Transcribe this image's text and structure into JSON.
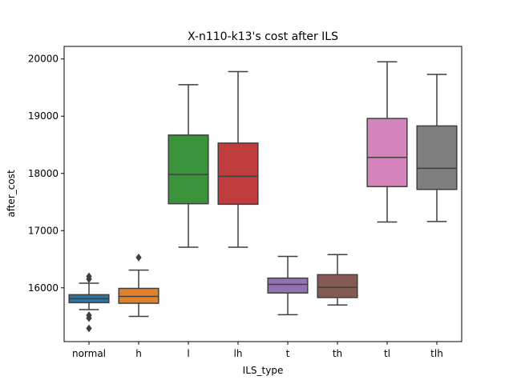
{
  "chart_data": {
    "type": "box",
    "title": "X-n110-k13's cost after ILS",
    "xlabel": "ILS_type",
    "ylabel": "after_cost",
    "ylim": [
      15060,
      20220
    ],
    "yticks": [
      16000,
      17000,
      18000,
      19000,
      20000
    ],
    "categories": [
      "normal",
      "h",
      "l",
      "lh",
      "t",
      "th",
      "tl",
      "tlh"
    ],
    "boxes": [
      {
        "category": "normal",
        "color": "#3274a1",
        "whisker_low": 15620,
        "q1": 15740,
        "median": 15810,
        "q3": 15880,
        "whisker_high": 16080,
        "outliers": [
          16150,
          16200,
          15520,
          15470,
          15290
        ]
      },
      {
        "category": "h",
        "color": "#e1812c",
        "whisker_low": 15500,
        "q1": 15730,
        "median": 15850,
        "q3": 15990,
        "whisker_high": 16310,
        "outliers": [
          16530
        ]
      },
      {
        "category": "l",
        "color": "#3a923a",
        "whisker_low": 16710,
        "q1": 17470,
        "median": 17980,
        "q3": 18670,
        "whisker_high": 19550,
        "outliers": []
      },
      {
        "category": "lh",
        "color": "#c03d3e",
        "whisker_low": 16710,
        "q1": 17460,
        "median": 17950,
        "q3": 18530,
        "whisker_high": 19780,
        "outliers": []
      },
      {
        "category": "t",
        "color": "#9372b2",
        "whisker_low": 15530,
        "q1": 15910,
        "median": 16060,
        "q3": 16170,
        "whisker_high": 16550,
        "outliers": []
      },
      {
        "category": "th",
        "color": "#845b53",
        "whisker_low": 15700,
        "q1": 15830,
        "median": 16010,
        "q3": 16230,
        "whisker_high": 16580,
        "outliers": []
      },
      {
        "category": "tl",
        "color": "#d684bd",
        "whisker_low": 17150,
        "q1": 17770,
        "median": 18280,
        "q3": 18960,
        "whisker_high": 19950,
        "outliers": []
      },
      {
        "category": "tlh",
        "color": "#7f7f7f",
        "whisker_low": 17160,
        "q1": 17720,
        "median": 18090,
        "q3": 18830,
        "whisker_high": 19730,
        "outliers": []
      }
    ],
    "grid": false,
    "legend": "none"
  }
}
